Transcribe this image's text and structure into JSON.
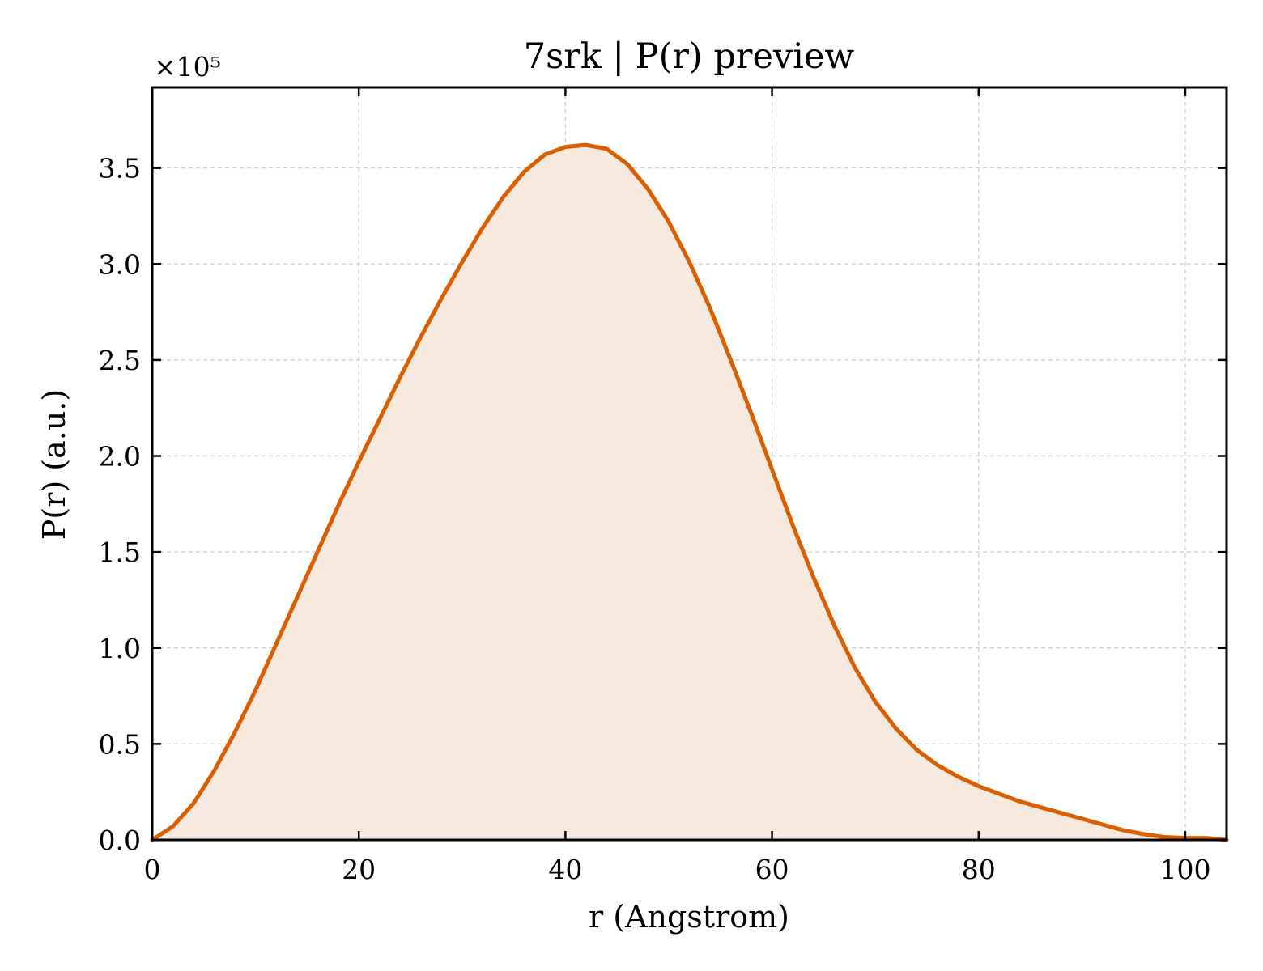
{
  "chart_data": {
    "type": "area",
    "title": "7srk | P(r) preview",
    "xlabel": "r (Angstrom)",
    "ylabel": "P(r) (a.u.)",
    "y_offset_text": "×10⁵",
    "y_scale": 100000,
    "xlim": [
      0,
      104
    ],
    "ylim": [
      0,
      3.92
    ],
    "xticks": [
      0,
      20,
      40,
      60,
      80,
      100
    ],
    "xtick_labels": [
      "0",
      "20",
      "40",
      "60",
      "80",
      "100"
    ],
    "yticks": [
      0,
      0.5,
      1.0,
      1.5,
      2.0,
      2.5,
      3.0,
      3.5
    ],
    "ytick_labels": [
      "0.0",
      "0.5",
      "1.0",
      "1.5",
      "2.0",
      "2.5",
      "3.0",
      "3.5"
    ],
    "grid": true,
    "line_color": "#d95f02",
    "fill_color": "#f8e9df",
    "series": [
      {
        "x": [
          0,
          2,
          4,
          6,
          8,
          10,
          12,
          14,
          16,
          18,
          20,
          22,
          24,
          26,
          28,
          30,
          32,
          34,
          36,
          38,
          40,
          42,
          44,
          46,
          48,
          50,
          52,
          54,
          56,
          58,
          60,
          62,
          64,
          66,
          68,
          70,
          72,
          74,
          76,
          78,
          80,
          82,
          84,
          86,
          88,
          90,
          92,
          94,
          96,
          98,
          100,
          102,
          104
        ],
        "values": [
          0.0,
          0.07,
          0.19,
          0.36,
          0.56,
          0.78,
          1.02,
          1.26,
          1.5,
          1.74,
          1.97,
          2.19,
          2.41,
          2.62,
          2.82,
          3.01,
          3.19,
          3.35,
          3.48,
          3.57,
          3.61,
          3.62,
          3.6,
          3.52,
          3.39,
          3.22,
          3.01,
          2.77,
          2.5,
          2.22,
          1.93,
          1.64,
          1.37,
          1.12,
          0.9,
          0.72,
          0.58,
          0.47,
          0.39,
          0.33,
          0.28,
          0.24,
          0.2,
          0.17,
          0.14,
          0.11,
          0.08,
          0.05,
          0.03,
          0.015,
          0.01,
          0.01,
          0.0
        ]
      }
    ]
  }
}
